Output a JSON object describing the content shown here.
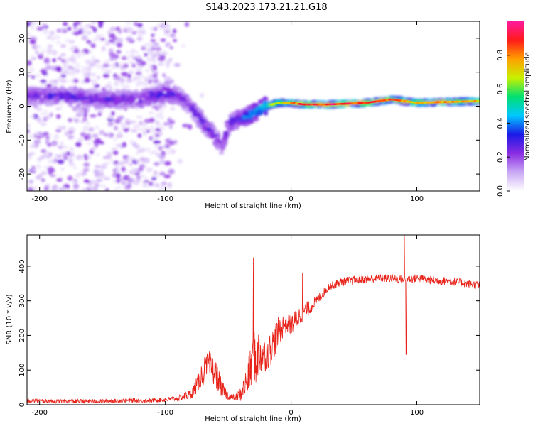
{
  "title": "S143.2023.173.21.21.G18",
  "colors": {
    "snr_line": "#e8231a",
    "axis": "#000000",
    "cbar_stops": [
      "#ffffff",
      "#c9a8f5",
      "#8a2be2",
      "#1a1ae6",
      "#00c8ff",
      "#00e070",
      "#c8f000",
      "#ffa000",
      "#ff1a1a",
      "#ff1aa0"
    ]
  },
  "chart_data": [
    {
      "type": "heatmap",
      "name": "spectrogram",
      "xlabel": "Height of straight line (km)",
      "ylabel": "Frequency (Hz)",
      "xlim": [
        -210,
        150
      ],
      "ylim": [
        -25,
        25
      ],
      "xticks": [
        -200,
        -100,
        0,
        100
      ],
      "xtick_labels": [
        "-200",
        "-100",
        "0",
        "100"
      ],
      "yticks": [
        -20,
        -10,
        0,
        10,
        20
      ],
      "ytick_labels": [
        "-20",
        "-10",
        "0",
        "10",
        "20"
      ],
      "colorbar": {
        "label": "Normalized spectral amplitude",
        "range": [
          0,
          1
        ],
        "ticks": [
          0.0,
          0.2,
          0.4,
          0.6,
          0.8
        ],
        "tick_labels": [
          "0.0",
          "0.2",
          "0.4",
          "0.6",
          "0.8"
        ]
      },
      "ridge": {
        "description_values": "dominant frequency (Hz) vs height (km)",
        "x": [
          -210,
          -180,
          -150,
          -120,
          -100,
          -90,
          -80,
          -70,
          -60,
          -55,
          -50,
          -45,
          -40,
          -35,
          -30,
          -25,
          -20,
          -10,
          0,
          10,
          30,
          60,
          80,
          100,
          150
        ],
        "y": [
          3,
          3,
          2,
          2,
          4,
          3,
          0,
          -5,
          -9,
          -12,
          -6,
          -4,
          -4,
          -3,
          -2,
          -1,
          0,
          1,
          1,
          0.5,
          0.5,
          1,
          2,
          1,
          1.5
        ],
        "amplitude": [
          0.3,
          0.3,
          0.3,
          0.3,
          0.35,
          0.3,
          0.25,
          0.3,
          0.3,
          0.25,
          0.3,
          0.35,
          0.4,
          0.45,
          0.5,
          0.55,
          0.6,
          0.7,
          0.8,
          0.9,
          0.95,
          0.9,
          0.85,
          0.8,
          0.8
        ]
      }
    },
    {
      "type": "line",
      "name": "snr",
      "xlabel": "Height of straight line (km)",
      "ylabel": "SNR (10 * v/v)",
      "xlim": [
        -210,
        150
      ],
      "ylim": [
        0,
        490
      ],
      "xticks": [
        -200,
        -100,
        0,
        100
      ],
      "xtick_labels": [
        "-200",
        "-100",
        "0",
        "100"
      ],
      "yticks": [
        0,
        100,
        200,
        300,
        400
      ],
      "ytick_labels": [
        "0",
        "100",
        "200",
        "300",
        "400"
      ],
      "trend": {
        "x": [
          -210,
          -190,
          -170,
          -150,
          -130,
          -110,
          -90,
          -80,
          -75,
          -70,
          -65,
          -60,
          -55,
          -50,
          -45,
          -40,
          -35,
          -30,
          -25,
          -20,
          -15,
          -10,
          -5,
          0,
          5,
          10,
          15,
          20,
          25,
          30,
          40,
          50,
          60,
          70,
          80,
          90,
          100,
          110,
          120,
          130,
          140,
          150
        ],
        "y": [
          12,
          10,
          10,
          10,
          12,
          12,
          18,
          30,
          55,
          95,
          110,
          90,
          45,
          25,
          20,
          30,
          70,
          130,
          150,
          140,
          170,
          210,
          235,
          230,
          250,
          270,
          280,
          300,
          320,
          340,
          355,
          360,
          362,
          365,
          365,
          362,
          365,
          360,
          358,
          355,
          350,
          345
        ],
        "noise": [
          6,
          6,
          6,
          6,
          6,
          6,
          8,
          15,
          25,
          40,
          45,
          40,
          25,
          12,
          10,
          20,
          45,
          80,
          70,
          45,
          50,
          45,
          30,
          30,
          30,
          25,
          20,
          15,
          15,
          12,
          12,
          12,
          12,
          12,
          12,
          12,
          12,
          12,
          12,
          12,
          12,
          12
        ]
      },
      "spikes": [
        {
          "x": -30,
          "y": 425
        },
        {
          "x": -31,
          "y": 180
        },
        {
          "x": -28,
          "y": 65
        },
        {
          "x": 9,
          "y": 380
        },
        {
          "x": 90,
          "y": 490
        },
        {
          "x": 91.5,
          "y": 145
        }
      ]
    }
  ]
}
